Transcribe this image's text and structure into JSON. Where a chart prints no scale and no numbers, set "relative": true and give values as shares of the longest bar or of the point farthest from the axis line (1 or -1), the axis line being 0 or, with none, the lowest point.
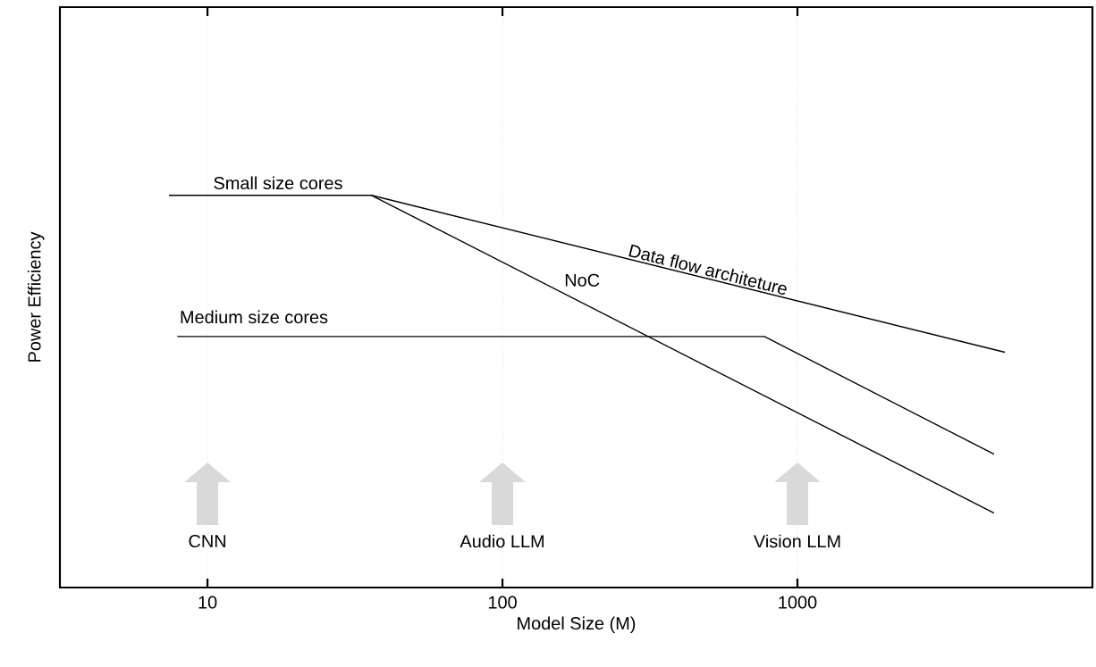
{
  "chart_data": {
    "type": "line",
    "relative": true,
    "xlabel": "Model Size (M)",
    "ylabel": "Power Efficiency",
    "log": "x",
    "xlim": [
      3.16,
      10000
    ],
    "xticks": [
      10,
      100,
      1000
    ],
    "grid": "x",
    "marker": "none",
    "line_style": "solid",
    "series": [
      {
        "name": "Small size cores",
        "color": "#000000",
        "x": [
          7.4,
          36,
          5050
        ],
        "values": [
          1,
          1,
          0.6
        ]
      },
      {
        "name": "NoC",
        "color": "#000000",
        "x": [
          36,
          4640
        ],
        "values": [
          1,
          0.19
        ]
      },
      {
        "name": "Medium size cores",
        "color": "#000000",
        "x": [
          7.9,
          773,
          4640
        ],
        "values": [
          0.64,
          0.64,
          0.34
        ]
      }
    ],
    "annotations": [
      {
        "text": "Data flow architeture",
        "x": 490,
        "y": 0.79
      },
      "CNN",
      "Audio LLM",
      "Vision LLM"
    ]
  }
}
